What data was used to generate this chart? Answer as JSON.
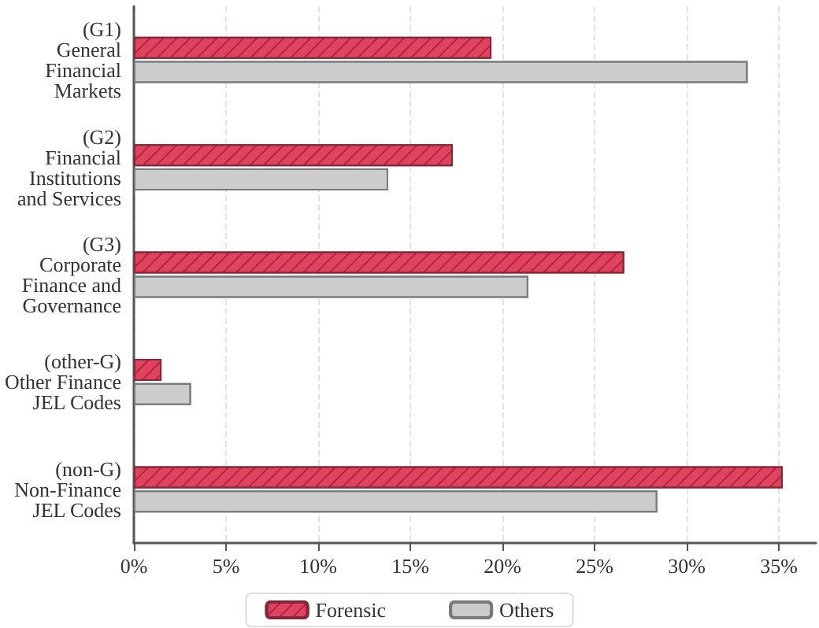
{
  "chart_data": {
    "type": "bar",
    "orientation": "horizontal",
    "categories": [
      "(G1)\nGeneral\nFinancial\nMarkets",
      "(G2)\nFinancial\nInstitutions\nand Services",
      "(G3)\nCorporate\nFinance and\nGovernance",
      "(other-G)\nOther Finance\nJEL Codes",
      "(non-G)\nNon-Finance\nJEL Codes"
    ],
    "series": [
      {
        "name": "Forensic",
        "color": "#e0435f",
        "values": [
          19.4,
          17.3,
          26.6,
          1.5,
          35.2
        ]
      },
      {
        "name": "Others",
        "color": "#cccccc",
        "values": [
          33.3,
          13.8,
          21.4,
          3.1,
          28.4
        ]
      }
    ],
    "xlim": [
      0,
      37
    ],
    "xticks": [
      {
        "value": 0,
        "label": "0%"
      },
      {
        "value": 5,
        "label": "5%"
      },
      {
        "value": 10,
        "label": "10%"
      },
      {
        "value": 15,
        "label": "15%"
      },
      {
        "value": 20,
        "label": "20%"
      },
      {
        "value": 25,
        "label": "25%"
      },
      {
        "value": 30,
        "label": "30%"
      },
      {
        "value": 35,
        "label": "35%"
      }
    ],
    "grid": "x",
    "legend": "bottom"
  }
}
